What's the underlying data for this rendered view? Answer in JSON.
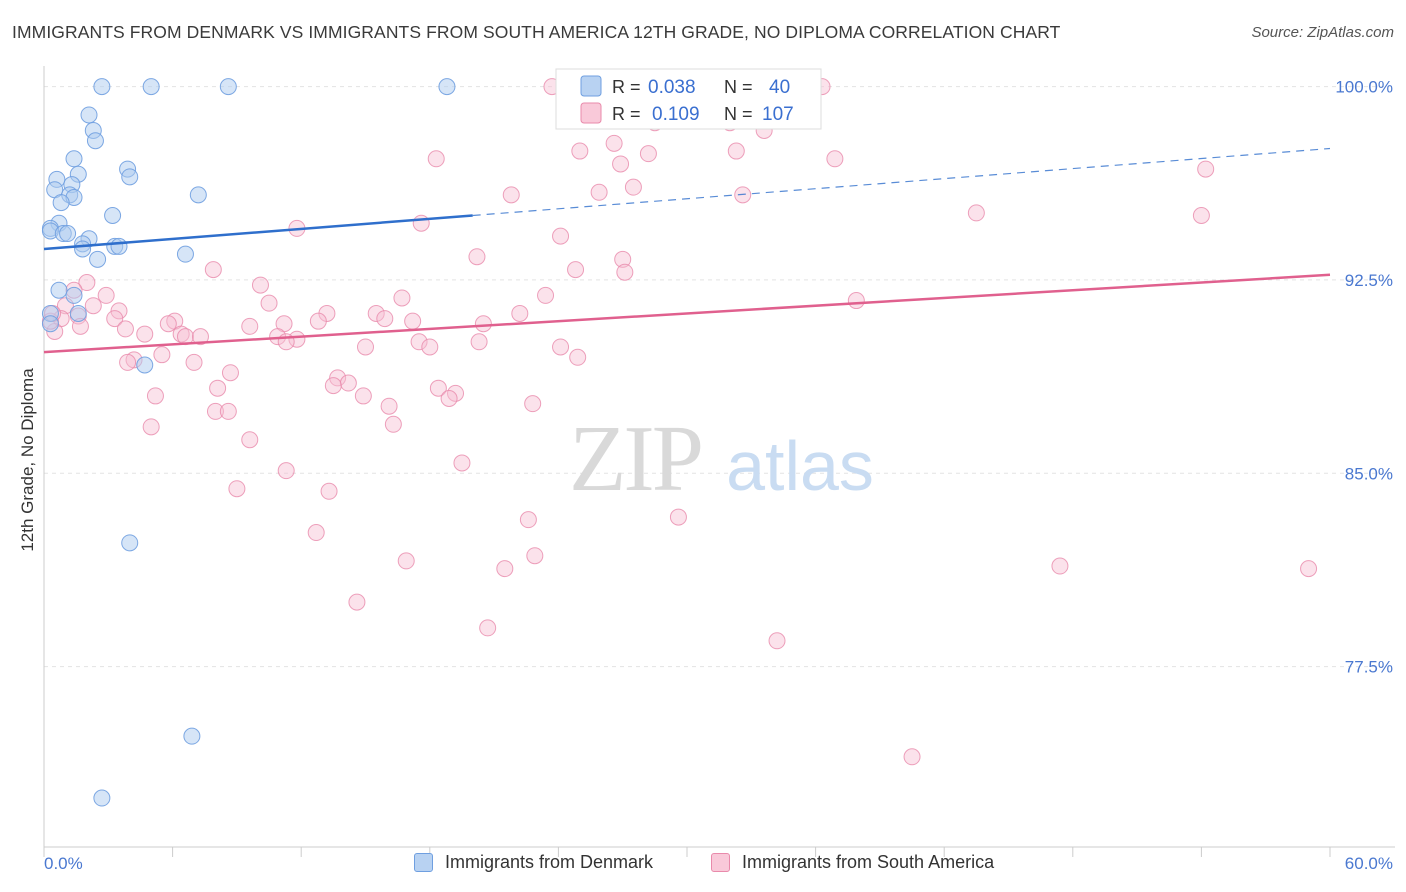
{
  "title": "IMMIGRANTS FROM DENMARK VS IMMIGRANTS FROM SOUTH AMERICA 12TH GRADE, NO DIPLOMA CORRELATION CHART",
  "source": "Source: ZipAtlas.com",
  "watermark": {
    "zip": "ZIP",
    "atlas": "atlas"
  },
  "colors": {
    "blue_fill": "#aecbf0",
    "blue_stroke": "#6f9fe0",
    "blue_line": "#2f6fcc",
    "pink_fill": "#f7bfd2",
    "pink_stroke": "#e98aab",
    "pink_line": "#e0608e",
    "tick_label": "#4a78d0",
    "grid": "#e3e3e3"
  },
  "legend_box": {
    "row1": {
      "r_label": "R =",
      "r_value": "0.038",
      "n_label": "N =",
      "n_value": "40"
    },
    "row2": {
      "r_label": "R =",
      "r_value": "0.109",
      "n_label": "N =",
      "n_value": "107"
    }
  },
  "chart_data": {
    "type": "scatter",
    "title": "IMMIGRANTS FROM DENMARK VS IMMIGRANTS FROM SOUTH AMERICA 12TH GRADE, NO DIPLOMA CORRELATION CHART",
    "xlabel": "",
    "ylabel": "12th Grade, No Diploma",
    "xlim": [
      0,
      60
    ],
    "ylim": [
      70.5,
      100.8
    ],
    "x_tick_labels": [
      "0.0%",
      "60.0%"
    ],
    "y_ticks": [
      100.0,
      92.5,
      85.0,
      77.5
    ],
    "y_tick_labels": [
      "100.0%",
      "92.5%",
      "85.0%",
      "77.5%"
    ],
    "grid": true,
    "legend_position": "top-center",
    "series": [
      {
        "name": "Immigrants from Denmark",
        "color": "#6f9fe0",
        "r": 0.038,
        "n": 40,
        "trend": {
          "x0": 0,
          "y0": 93.7,
          "x1": 20,
          "y1": 95.0,
          "dashed_to_x": 60,
          "dashed_to_y": 97.6
        },
        "points": [
          [
            2.7,
            100.0
          ],
          [
            5.0,
            100.0
          ],
          [
            8.6,
            100.0
          ],
          [
            18.8,
            100.0
          ],
          [
            2.1,
            98.9
          ],
          [
            2.3,
            98.3
          ],
          [
            2.4,
            97.9
          ],
          [
            1.4,
            97.2
          ],
          [
            3.9,
            96.8
          ],
          [
            1.6,
            96.6
          ],
          [
            4.0,
            96.5
          ],
          [
            0.6,
            96.4
          ],
          [
            1.3,
            96.2
          ],
          [
            0.5,
            96.0
          ],
          [
            1.2,
            95.8
          ],
          [
            1.4,
            95.7
          ],
          [
            7.2,
            95.8
          ],
          [
            0.8,
            95.5
          ],
          [
            3.2,
            95.0
          ],
          [
            0.7,
            94.7
          ],
          [
            0.3,
            94.5
          ],
          [
            0.3,
            94.4
          ],
          [
            0.9,
            94.3
          ],
          [
            1.1,
            94.3
          ],
          [
            2.1,
            94.1
          ],
          [
            1.8,
            93.9
          ],
          [
            1.8,
            93.7
          ],
          [
            3.3,
            93.8
          ],
          [
            3.5,
            93.8
          ],
          [
            6.6,
            93.5
          ],
          [
            2.5,
            93.3
          ],
          [
            0.7,
            92.1
          ],
          [
            1.4,
            91.9
          ],
          [
            0.3,
            91.2
          ],
          [
            1.6,
            91.2
          ],
          [
            4.7,
            89.2
          ],
          [
            4.0,
            82.3
          ],
          [
            6.9,
            74.8
          ],
          [
            2.7,
            72.4
          ],
          [
            0.3,
            90.8
          ]
        ]
      },
      {
        "name": "Immigrants from South America",
        "color": "#e98aab",
        "r": 0.109,
        "n": 107,
        "trend": {
          "x0": 0,
          "y0": 89.7,
          "x1": 60,
          "y1": 92.7
        },
        "points": [
          [
            23.7,
            100.0
          ],
          [
            36.3,
            100.0
          ],
          [
            28.5,
            98.6
          ],
          [
            32.0,
            98.6
          ],
          [
            33.6,
            98.3
          ],
          [
            26.6,
            97.8
          ],
          [
            25.0,
            97.5
          ],
          [
            28.2,
            97.4
          ],
          [
            32.3,
            97.5
          ],
          [
            36.9,
            97.2
          ],
          [
            18.3,
            97.2
          ],
          [
            26.9,
            97.0
          ],
          [
            54.2,
            96.8
          ],
          [
            27.5,
            96.1
          ],
          [
            21.8,
            95.8
          ],
          [
            25.9,
            95.9
          ],
          [
            32.6,
            95.8
          ],
          [
            43.5,
            95.1
          ],
          [
            54.0,
            95.0
          ],
          [
            17.6,
            94.7
          ],
          [
            11.8,
            94.5
          ],
          [
            24.1,
            94.2
          ],
          [
            20.2,
            93.4
          ],
          [
            27.0,
            93.3
          ],
          [
            27.1,
            92.8
          ],
          [
            24.8,
            92.9
          ],
          [
            7.9,
            92.9
          ],
          [
            10.1,
            92.3
          ],
          [
            2.0,
            92.4
          ],
          [
            1.4,
            92.1
          ],
          [
            2.9,
            91.9
          ],
          [
            23.4,
            91.9
          ],
          [
            16.7,
            91.8
          ],
          [
            10.5,
            91.6
          ],
          [
            37.9,
            91.7
          ],
          [
            2.3,
            91.5
          ],
          [
            1.0,
            91.5
          ],
          [
            3.5,
            91.3
          ],
          [
            13.2,
            91.2
          ],
          [
            15.5,
            91.2
          ],
          [
            22.2,
            91.2
          ],
          [
            1.6,
            91.1
          ],
          [
            0.8,
            91.0
          ],
          [
            3.3,
            91.0
          ],
          [
            6.1,
            90.9
          ],
          [
            5.8,
            90.8
          ],
          [
            12.8,
            90.9
          ],
          [
            15.9,
            91.0
          ],
          [
            17.2,
            90.9
          ],
          [
            9.6,
            90.7
          ],
          [
            11.2,
            90.8
          ],
          [
            20.5,
            90.8
          ],
          [
            3.8,
            90.6
          ],
          [
            4.7,
            90.4
          ],
          [
            6.4,
            90.4
          ],
          [
            6.6,
            90.3
          ],
          [
            7.3,
            90.3
          ],
          [
            10.9,
            90.3
          ],
          [
            11.8,
            90.2
          ],
          [
            17.5,
            90.1
          ],
          [
            20.3,
            90.1
          ],
          [
            11.3,
            90.1
          ],
          [
            1.7,
            90.7
          ],
          [
            0.5,
            90.5
          ],
          [
            15.0,
            89.9
          ],
          [
            18.0,
            89.9
          ],
          [
            24.1,
            89.9
          ],
          [
            5.5,
            89.6
          ],
          [
            4.2,
            89.4
          ],
          [
            24.9,
            89.5
          ],
          [
            7.0,
            89.3
          ],
          [
            3.9,
            89.3
          ],
          [
            8.7,
            88.9
          ],
          [
            13.7,
            88.7
          ],
          [
            14.2,
            88.5
          ],
          [
            13.5,
            88.4
          ],
          [
            8.1,
            88.3
          ],
          [
            18.4,
            88.3
          ],
          [
            19.2,
            88.1
          ],
          [
            5.2,
            88.0
          ],
          [
            14.9,
            88.0
          ],
          [
            18.9,
            87.9
          ],
          [
            16.1,
            87.6
          ],
          [
            22.8,
            87.7
          ],
          [
            8.0,
            87.4
          ],
          [
            8.6,
            87.4
          ],
          [
            16.3,
            86.9
          ],
          [
            5.0,
            86.8
          ],
          [
            9.6,
            86.3
          ],
          [
            19.5,
            85.4
          ],
          [
            11.3,
            85.1
          ],
          [
            9.0,
            84.4
          ],
          [
            13.3,
            84.3
          ],
          [
            22.6,
            83.2
          ],
          [
            29.6,
            83.3
          ],
          [
            12.7,
            82.7
          ],
          [
            16.9,
            81.6
          ],
          [
            22.9,
            81.8
          ],
          [
            21.5,
            81.3
          ],
          [
            47.4,
            81.4
          ],
          [
            59.0,
            81.3
          ],
          [
            14.6,
            80.0
          ],
          [
            20.7,
            79.0
          ],
          [
            34.2,
            78.5
          ],
          [
            40.5,
            74.0
          ],
          [
            0.3,
            90.9
          ],
          [
            0.4,
            91.2
          ]
        ]
      }
    ]
  }
}
